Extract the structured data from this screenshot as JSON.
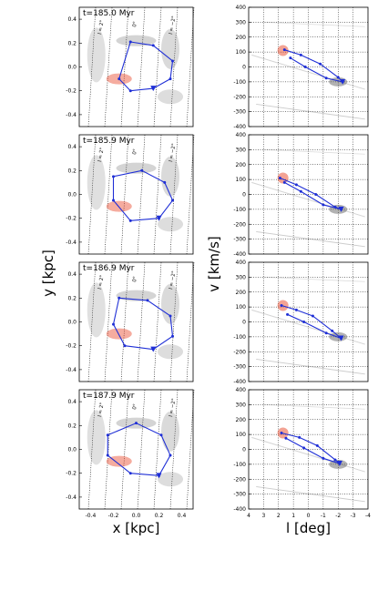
{
  "colors": {
    "orbit": "#1f2fd6",
    "gas": "#555555",
    "hot": "#e8472a",
    "grid": "#000000"
  },
  "chart_data": [
    {
      "type": "line",
      "panel": "xy",
      "annotation": "t=185.0 Myr",
      "xlabel": "x [kpc]",
      "ylabel": "y [kpc]",
      "xlim": [
        -0.5,
        0.5
      ],
      "ylim": [
        -0.5,
        0.5
      ],
      "line_labels": [
        "l = 2°",
        "0°",
        "l = −2°"
      ],
      "series": [
        {
          "x": [
            -0.05,
            0.15,
            0.32,
            0.3,
            0.15,
            -0.05,
            -0.15
          ],
          "y": [
            0.21,
            0.18,
            0.05,
            -0.1,
            -0.18,
            -0.2,
            -0.1
          ]
        }
      ]
    },
    {
      "type": "line",
      "panel": "lv",
      "xlabel": "l [deg]",
      "ylabel": "v [km/s]",
      "xlim": [
        4,
        -4
      ],
      "ylim": [
        -400,
        400
      ],
      "series": [
        {
          "x": [
            1.6,
            0.5,
            -0.8,
            -2.0,
            -2.3,
            -1.2,
            0.2,
            1.2
          ],
          "y": [
            115,
            80,
            20,
            -70,
            -100,
            -75,
            0,
            60
          ]
        }
      ]
    },
    {
      "type": "line",
      "panel": "xy",
      "annotation": "t=185.9 Myr",
      "xlabel": "x [kpc]",
      "ylabel": "y [kpc]",
      "xlim": [
        -0.5,
        0.5
      ],
      "ylim": [
        -0.5,
        0.5
      ],
      "line_labels": [
        "l = 2°",
        "0°",
        "l = −2°"
      ],
      "series": [
        {
          "x": [
            -0.2,
            0.05,
            0.25,
            0.32,
            0.2,
            -0.05,
            -0.2
          ],
          "y": [
            0.15,
            0.2,
            0.1,
            -0.05,
            -0.2,
            -0.22,
            -0.05
          ]
        }
      ]
    },
    {
      "type": "line",
      "panel": "lv",
      "xlabel": "l [deg]",
      "ylabel": "v [km/s]",
      "xlim": [
        4,
        -4
      ],
      "ylim": [
        -400,
        400
      ],
      "series": [
        {
          "x": [
            1.9,
            0.8,
            -0.5,
            -1.8,
            -2.2,
            -1.0,
            0.5,
            1.6
          ],
          "y": [
            110,
            65,
            0,
            -85,
            -100,
            -70,
            20,
            80
          ]
        }
      ]
    },
    {
      "type": "line",
      "panel": "xy",
      "annotation": "t=186.9 Myr",
      "xlabel": "x [kpc]",
      "ylabel": "y [kpc]",
      "xlim": [
        -0.5,
        0.5
      ],
      "ylim": [
        -0.5,
        0.5
      ],
      "line_labels": [
        "l = 2°",
        "0°",
        "l = −2°"
      ],
      "series": [
        {
          "x": [
            -0.15,
            0.1,
            0.3,
            0.32,
            0.15,
            -0.1,
            -0.2
          ],
          "y": [
            0.2,
            0.18,
            0.05,
            -0.12,
            -0.23,
            -0.2,
            -0.02
          ]
        }
      ]
    },
    {
      "type": "line",
      "panel": "lv",
      "xlabel": "l [deg]",
      "ylabel": "v [km/s]",
      "xlim": [
        4,
        -4
      ],
      "ylim": [
        -400,
        400
      ],
      "series": [
        {
          "x": [
            1.8,
            0.8,
            -0.3,
            -1.6,
            -2.2,
            -1.2,
            0.3,
            1.4
          ],
          "y": [
            110,
            80,
            40,
            -60,
            -110,
            -75,
            0,
            50
          ]
        }
      ]
    },
    {
      "type": "line",
      "panel": "xy",
      "annotation": "t=187.9 Myr",
      "xlabel": "x [kpc]",
      "ylabel": "y [kpc]",
      "xlim": [
        -0.5,
        0.5
      ],
      "ylim": [
        -0.5,
        0.5
      ],
      "line_labels": [
        "l = 2°",
        "0°",
        "l = −2°"
      ],
      "series": [
        {
          "x": [
            -0.25,
            0.0,
            0.22,
            0.3,
            0.2,
            -0.05,
            -0.25
          ],
          "y": [
            0.12,
            0.22,
            0.12,
            -0.05,
            -0.22,
            -0.2,
            -0.05
          ]
        }
      ]
    },
    {
      "type": "line",
      "panel": "lv",
      "xlabel": "l [deg]",
      "ylabel": "v [km/s]",
      "xlim": [
        4,
        -4
      ],
      "ylim": [
        -400,
        400
      ],
      "series": [
        {
          "x": [
            1.8,
            0.6,
            -0.6,
            -1.8,
            -2.1,
            -1.0,
            0.3,
            1.5
          ],
          "y": [
            110,
            80,
            25,
            -70,
            -95,
            -60,
            10,
            75
          ]
        }
      ]
    }
  ]
}
